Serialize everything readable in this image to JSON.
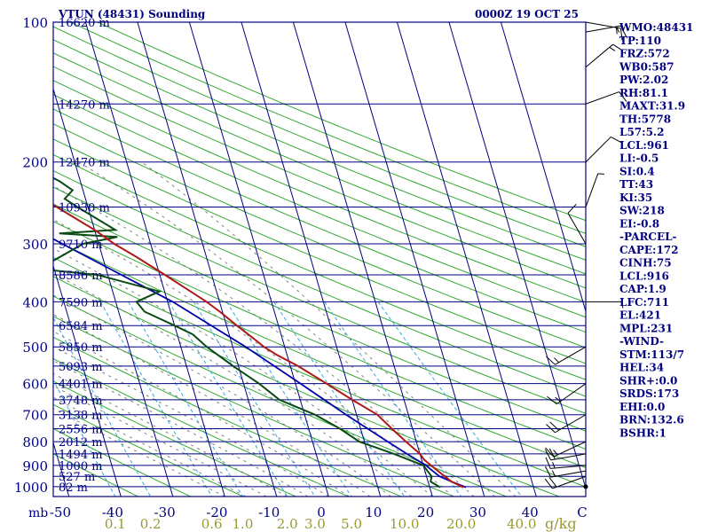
{
  "chart_data": {
    "type": "skew-t log-p sounding",
    "title": "VTUN (48431) Sounding",
    "datetime": "0000Z 19 OCT 25",
    "xlabel": "",
    "pressure_unit": "mb",
    "mixing_ratio_unit": "g/kg",
    "pressure_ticks": [
      100,
      200,
      300,
      400,
      500,
      600,
      700,
      800,
      900,
      1000
    ],
    "temperature_ticks": [
      "-50",
      "-40",
      "-30",
      "-20",
      "-10",
      "0",
      "10",
      "20",
      "30",
      "40",
      "C"
    ],
    "mixing_ratio_ticks": [
      "0.1",
      "0.2",
      "0.6",
      "1.0",
      "2.0",
      "3.0",
      "5.0",
      "10.0",
      "20.0",
      "40.0"
    ],
    "height_labels": [
      {
        "p": 100,
        "label": "16620 m"
      },
      {
        "p": 150,
        "label": "14270 m"
      },
      {
        "p": 200,
        "label": "12470 m"
      },
      {
        "p": 250,
        "label": "10930 m"
      },
      {
        "p": 300,
        "label": "9710 m"
      },
      {
        "p": 350,
        "label": "8586 m"
      },
      {
        "p": 400,
        "label": "7590 m"
      },
      {
        "p": 450,
        "label": "6584 m"
      },
      {
        "p": 500,
        "label": "5850 m"
      },
      {
        "p": 550,
        "label": "5093 m"
      },
      {
        "p": 600,
        "label": "4401 m"
      },
      {
        "p": 650,
        "label": "3748 m"
      },
      {
        "p": 700,
        "label": "3138 m"
      },
      {
        "p": 750,
        "label": "2556 m"
      },
      {
        "p": 800,
        "label": "2012 m"
      },
      {
        "p": 850,
        "label": "1494 m"
      },
      {
        "p": 900,
        "label": "1000 m"
      },
      {
        "p": 950,
        "label": "527 m"
      },
      {
        "p": 1000,
        "label": "82 m"
      }
    ],
    "temperature_series": [
      [
        1003,
        26.5
      ],
      [
        975,
        24.5
      ],
      [
        950,
        23.5
      ],
      [
        925,
        22.5
      ],
      [
        900,
        21.5
      ],
      [
        875,
        20.5
      ],
      [
        850,
        20
      ],
      [
        800,
        18
      ],
      [
        750,
        16
      ],
      [
        700,
        14
      ],
      [
        650,
        10
      ],
      [
        600,
        6
      ],
      [
        550,
        1.5
      ],
      [
        520,
        -2
      ],
      [
        500,
        -4
      ],
      [
        480,
        -5.5
      ],
      [
        450,
        -8
      ],
      [
        420,
        -10.5
      ],
      [
        400,
        -12.5
      ],
      [
        380,
        -15
      ],
      [
        350,
        -19
      ],
      [
        320,
        -23.5
      ],
      [
        300,
        -27
      ],
      [
        280,
        -30
      ],
      [
        250,
        -36
      ],
      [
        220,
        -42.5
      ],
      [
        200,
        -47
      ],
      [
        180,
        -52
      ],
      [
        160,
        -58
      ],
      [
        150,
        -61
      ],
      [
        140,
        -64
      ],
      [
        130,
        -68
      ],
      [
        120,
        -72
      ],
      [
        110,
        -76
      ],
      [
        104,
        -78
      ],
      [
        100,
        -79
      ]
    ],
    "dewpoint_series": [
      [
        1003,
        22
      ],
      [
        975,
        20.5
      ],
      [
        950,
        21
      ],
      [
        925,
        20.5
      ],
      [
        900,
        20
      ],
      [
        850,
        15
      ],
      [
        800,
        9
      ],
      [
        750,
        6
      ],
      [
        700,
        2
      ],
      [
        650,
        -4
      ],
      [
        600,
        -7
      ],
      [
        550,
        -11
      ],
      [
        500,
        -15
      ],
      [
        470,
        -17
      ],
      [
        450,
        -20
      ],
      [
        420,
        -25
      ],
      [
        400,
        -26
      ],
      [
        380,
        -21
      ],
      [
        350,
        -32
      ],
      [
        340,
        -43
      ],
      [
        300,
        -33
      ],
      [
        290,
        -26
      ],
      [
        285,
        -37
      ],
      [
        280,
        -26
      ],
      [
        250,
        -32
      ],
      [
        240,
        -34
      ],
      [
        230,
        -32
      ],
      [
        220,
        -34
      ],
      [
        210,
        -37
      ],
      [
        200,
        -42
      ],
      [
        180,
        -48
      ],
      [
        160,
        -55
      ],
      [
        150,
        -58
      ],
      [
        140,
        -59
      ],
      [
        130,
        -63
      ],
      [
        120,
        -66
      ],
      [
        110,
        -69
      ],
      [
        100,
        -72
      ]
    ],
    "parcel_series": [
      [
        1003,
        27
      ],
      [
        975,
        24.5
      ],
      [
        950,
        22.5
      ],
      [
        925,
        21.5
      ],
      [
        900,
        20.5
      ],
      [
        850,
        17.5
      ],
      [
        800,
        14.5
      ],
      [
        700,
        8
      ],
      [
        600,
        1
      ],
      [
        500,
        -7.5
      ],
      [
        400,
        -19
      ],
      [
        300,
        -37
      ],
      [
        250,
        -48
      ],
      [
        200,
        -60
      ],
      [
        150,
        -74
      ],
      [
        120,
        -84
      ],
      [
        110,
        -88
      ]
    ],
    "wind_barbs": [
      {
        "p": 1000,
        "dir": 90,
        "spd": 0
      },
      {
        "p": 950,
        "dir": 250,
        "spd": 20
      },
      {
        "p": 925,
        "dir": 260,
        "spd": 15
      },
      {
        "p": 900,
        "dir": 265,
        "spd": 15
      },
      {
        "p": 850,
        "dir": 260,
        "spd": 20
      },
      {
        "p": 800,
        "dir": 245,
        "spd": 15
      },
      {
        "p": 700,
        "dir": 240,
        "spd": 20
      },
      {
        "p": 600,
        "dir": 235,
        "spd": 15
      },
      {
        "p": 500,
        "dir": 240,
        "spd": 15
      },
      {
        "p": 400,
        "dir": 90,
        "spd": 5
      },
      {
        "p": 300,
        "dir": 330,
        "spd": 10
      },
      {
        "p": 250,
        "dir": 20,
        "spd": 5
      },
      {
        "p": 200,
        "dir": 45,
        "spd": 10
      },
      {
        "p": 150,
        "dir": 70,
        "spd": 10
      },
      {
        "p": 125,
        "dir": 50,
        "spd": 15
      },
      {
        "p": 105,
        "dir": 80,
        "spd": 15
      },
      {
        "p": 100,
        "dir": 100,
        "spd": 15
      }
    ]
  },
  "indices": [
    "WMO:48431",
    "TP:110",
    "FRZ:572",
    "WB0:587",
    "PW:2.02",
    "RH:81.1",
    "MAXT:31.9",
    "TH:5778",
    "L57:5.2",
    "LCL:961",
    "LI:-0.5",
    "SI:0.4",
    "TT:43",
    "KI:35",
    "SW:218",
    "EI:-0.8",
    "-PARCEL-",
    "CAPE:172",
    "CINH:75",
    "LCL:916",
    "CAP:1.9",
    "LFC:711",
    "EL:421",
    "MPL:231",
    "-WIND-",
    "STM:113/7",
    "HEL:34",
    "SHR+:0.0",
    "SRDS:173",
    "EHI:0.0",
    "BRN:132.6",
    "BSHR:1"
  ],
  "colors": {
    "frame": "#000080",
    "temperature": "#b01818",
    "dewpoint": "#0a4a14",
    "parcel": "#0000a8",
    "dry_adiabat": "#33aa33",
    "isotherm": "#000080",
    "mixing_ratio": "#33aadd",
    "moist_adiabat": "#808080",
    "mixing_ratio_label": "#999933"
  }
}
